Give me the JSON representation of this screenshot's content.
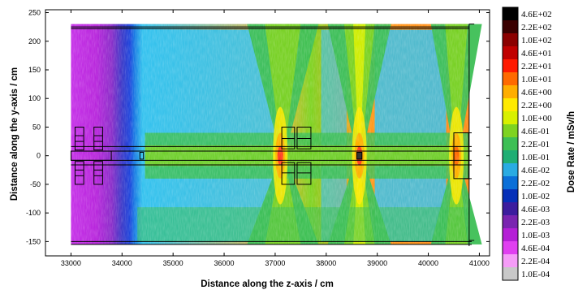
{
  "chart_data": {
    "type": "heatmap",
    "xlabel": "Distance along the z-axis / cm",
    "ylabel": "Distance along the y-axis / cm",
    "colorbar_label": "Dose Rate / mSv/h",
    "xlim": [
      32500,
      41200
    ],
    "ylim": [
      -175,
      255
    ],
    "x_ticks": [
      {
        "value": 33000,
        "label": "33000"
      },
      {
        "value": 34000,
        "label": "34000"
      },
      {
        "value": 35000,
        "label": "35000"
      },
      {
        "value": 36000,
        "label": "36000"
      },
      {
        "value": 37000,
        "label": "37000"
      },
      {
        "value": 38000,
        "label": "38000"
      },
      {
        "value": 39000,
        "label": "39000"
      },
      {
        "value": 40000,
        "label": "40000"
      },
      {
        "value": 41000,
        "label": "41000"
      }
    ],
    "y_ticks": [
      {
        "value": 250,
        "label": "250"
      },
      {
        "value": 200,
        "label": "200"
      },
      {
        "value": 150,
        "label": "150"
      },
      {
        "value": 100,
        "label": "100"
      },
      {
        "value": 50,
        "label": "50"
      },
      {
        "value": 0,
        "label": "0"
      },
      {
        "value": -50,
        "label": "-50"
      },
      {
        "value": -100,
        "label": "-100"
      },
      {
        "value": -150,
        "label": "-150"
      }
    ],
    "grid": false,
    "colorbar_position": "right",
    "data_extent": {
      "x": [
        33000,
        40800
      ],
      "y": [
        -155,
        230
      ]
    },
    "colorbar": [
      {
        "label": "4.6E+02",
        "color": "#000000"
      },
      {
        "label": "2.2E+02",
        "color": "#3a0000"
      },
      {
        "label": "1.0E+02",
        "color": "#8b0000"
      },
      {
        "label": "4.6E+01",
        "color": "#c00000"
      },
      {
        "label": "2.2E+01",
        "color": "#ff1a00"
      },
      {
        "label": "1.0E+01",
        "color": "#ff6a00"
      },
      {
        "label": "4.6E+00",
        "color": "#ffae00"
      },
      {
        "label": "2.2E+00",
        "color": "#ffea00"
      },
      {
        "label": "1.0E+00",
        "color": "#d8f000"
      },
      {
        "label": "4.6E-01",
        "color": "#7ed321"
      },
      {
        "label": "2.2E-01",
        "color": "#3dbf55"
      },
      {
        "label": "1.0E-01",
        "color": "#1fae74"
      },
      {
        "label": "4.6E-02",
        "color": "#29abe2"
      },
      {
        "label": "2.2E-02",
        "color": "#0a6fd8"
      },
      {
        "label": "1.0E-02",
        "color": "#0630b8"
      },
      {
        "label": "4.6E-03",
        "color": "#3c1d9e"
      },
      {
        "label": "2.2E-03",
        "color": "#7a24b0"
      },
      {
        "label": "1.0E-03",
        "color": "#b51fd6"
      },
      {
        "label": "4.6E-04",
        "color": "#e040f0"
      },
      {
        "label": "2.2E-04",
        "color": "#f59cf7"
      },
      {
        "label": "1.0E-04",
        "color": "#c8c8c8"
      }
    ],
    "z_profile": [
      {
        "z": 33000,
        "dose_level": "1.0E-03",
        "color": "#c632e8"
      },
      {
        "z": 33500,
        "dose_level": "1.0E-03",
        "color": "#b827dc"
      },
      {
        "z": 33800,
        "dose_level": "2.2E-03",
        "color": "#8a2ec9"
      },
      {
        "z": 34000,
        "dose_level": "4.6E-03",
        "color": "#3c3ac8"
      },
      {
        "z": 34150,
        "dose_level": "1.0E-02",
        "color": "#1e45dc"
      },
      {
        "z": 34250,
        "dose_level": "2.2E-02",
        "color": "#1a7ee4"
      },
      {
        "z": 34400,
        "dose_level": "4.6E-02",
        "color": "#35c2ee"
      },
      {
        "z": 37150,
        "dose_level": "1.0E+00",
        "color": "#e8b63a"
      },
      {
        "z": 37700,
        "dose_level": "4.6E-01",
        "color": "#7ed321"
      },
      {
        "z": 38650,
        "dose_level": "4.6E+00",
        "color": "#ff9a1a"
      },
      {
        "z": 40600,
        "dose_level": "4.6E+00",
        "color": "#ff8c1a"
      }
    ],
    "hot_spots": [
      {
        "z": 37100,
        "y": 0,
        "dose_level": "2.2E+01",
        "color": "#ff3a1a"
      },
      {
        "z": 38650,
        "y": 0,
        "dose_level": "2.2E+01",
        "color": "#ff3a1a"
      },
      {
        "z": 40550,
        "y": 0,
        "dose_level": "1.0E+01",
        "color": "#ff6a00"
      }
    ]
  }
}
